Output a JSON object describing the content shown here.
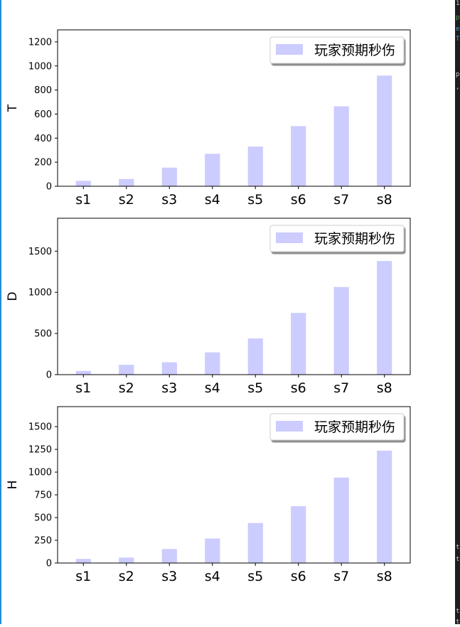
{
  "chart_data": [
    {
      "type": "bar",
      "ylabel": "T",
      "categories": [
        "s1",
        "s2",
        "s3",
        "s4",
        "s5",
        "s6",
        "s7",
        "s8"
      ],
      "series": [
        {
          "name": "玩家预期秒伤",
          "values": [
            45,
            60,
            155,
            270,
            330,
            500,
            665,
            920
          ],
          "color": "#ccccff"
        }
      ],
      "ylim": [
        0,
        1300
      ],
      "yticks": [
        0,
        200,
        400,
        600,
        800,
        1000,
        1200
      ],
      "grid": false,
      "legend_position": "top-right"
    },
    {
      "type": "bar",
      "ylabel": "D",
      "categories": [
        "s1",
        "s2",
        "s3",
        "s4",
        "s5",
        "s6",
        "s7",
        "s8"
      ],
      "series": [
        {
          "name": "玩家预期秒伤",
          "values": [
            45,
            120,
            150,
            270,
            440,
            750,
            1065,
            1380
          ],
          "color": "#ccccff"
        }
      ],
      "ylim": [
        0,
        1900
      ],
      "yticks": [
        0,
        500,
        1000,
        1500
      ],
      "grid": false,
      "legend_position": "top-right"
    },
    {
      "type": "bar",
      "ylabel": "H",
      "categories": [
        "s1",
        "s2",
        "s3",
        "s4",
        "s5",
        "s6",
        "s7",
        "s8"
      ],
      "series": [
        {
          "name": "玩家预期秒伤",
          "values": [
            45,
            60,
            155,
            270,
            440,
            625,
            940,
            1235
          ],
          "color": "#ccccff"
        }
      ],
      "ylim": [
        0,
        1720
      ],
      "yticks": [
        0,
        250,
        500,
        750,
        1000,
        1250,
        1500
      ],
      "grid": false,
      "legend_position": "top-right"
    }
  ],
  "side_text": {
    "fragments": [
      {
        "text": "1",
        "color": "#cccccc"
      },
      {
        "text": "p",
        "color": "#6a9955"
      },
      {
        "text": "e",
        "color": "#569cd6"
      },
      {
        "text": "T",
        "color": "#569cd6"
      },
      {
        "text": "p",
        "color": "#cccccc"
      },
      {
        "text": ",",
        "color": "#cccccc"
      },
      {
        "text": "t",
        "color": "#cccccc"
      },
      {
        "text": "t",
        "color": "#cccccc"
      },
      {
        "text": "t",
        "color": "#cccccc"
      },
      {
        "text": "t",
        "color": "#cccccc"
      }
    ]
  }
}
